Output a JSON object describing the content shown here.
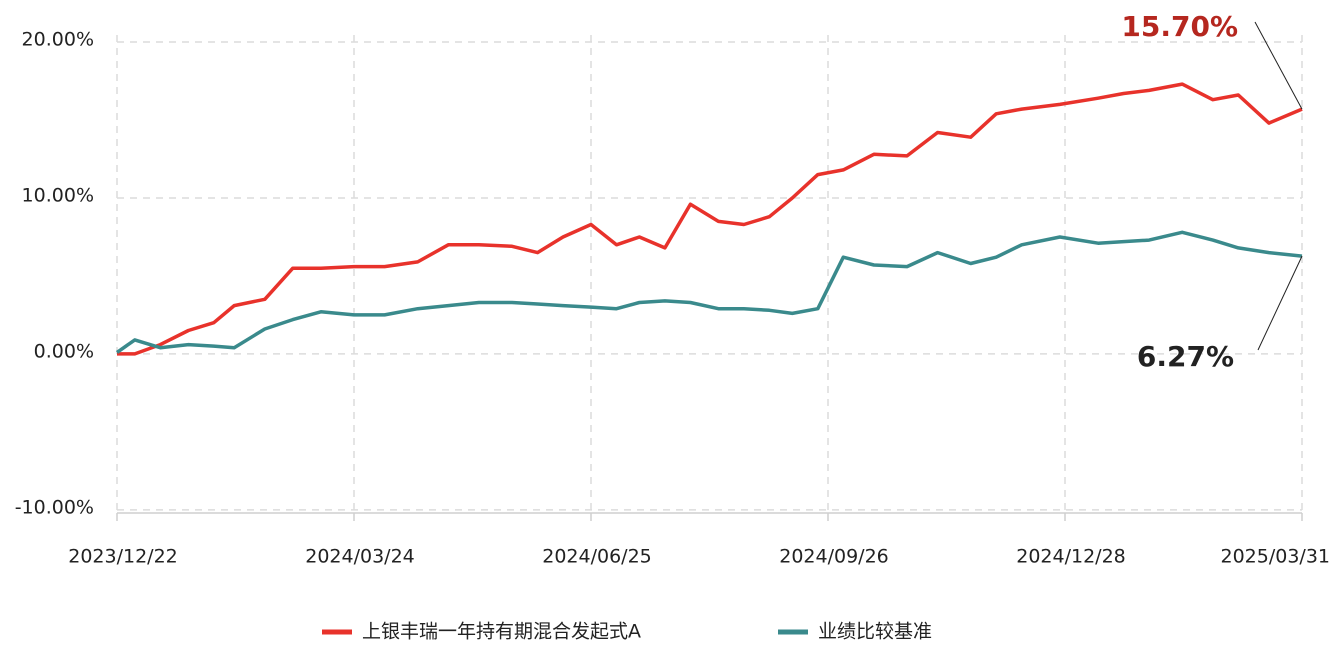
{
  "chart_data": {
    "type": "line",
    "x": [
      "2023/12/22",
      "2023/12/29",
      "2024/01/08",
      "2024/01/19",
      "2024/01/29",
      "2024/02/06",
      "2024/02/18",
      "2024/02/29",
      "2024/03/11",
      "2024/03/24",
      "2024/04/05",
      "2024/04/18",
      "2024/04/30",
      "2024/05/12",
      "2024/05/25",
      "2024/06/04",
      "2024/06/14",
      "2024/06/25",
      "2024/07/05",
      "2024/07/14",
      "2024/07/24",
      "2024/08/03",
      "2024/08/14",
      "2024/08/24",
      "2024/09/03",
      "2024/09/12",
      "2024/09/22",
      "2024/10/02",
      "2024/10/14",
      "2024/10/27",
      "2024/11/08",
      "2024/11/21",
      "2024/12/01",
      "2024/12/11",
      "2024/12/26",
      "2025/01/10",
      "2025/01/20",
      "2025/01/30",
      "2025/02/12",
      "2025/02/24",
      "2025/03/06",
      "2025/03/18",
      "2025/03/31"
    ],
    "series": [
      {
        "name": "上银丰瑞一年持有期混合发起式A",
        "color": "#e8322b",
        "label_color": "#b5271f",
        "end_label": "15.70%",
        "values": [
          0,
          0,
          0.6,
          1.5,
          2.0,
          3.1,
          3.5,
          5.5,
          5.5,
          5.6,
          5.6,
          5.9,
          7.0,
          7.0,
          6.9,
          6.5,
          7.5,
          8.3,
          7.0,
          7.5,
          6.8,
          9.6,
          8.5,
          8.3,
          8.8,
          10.0,
          11.5,
          11.8,
          12.8,
          12.7,
          14.2,
          13.9,
          15.4,
          15.7,
          16.0,
          16.4,
          16.7,
          16.9,
          17.3,
          16.3,
          16.6,
          14.8,
          15.7
        ]
      },
      {
        "name": "业绩比较基准",
        "color": "#3a8a8c",
        "label_color": "#222222",
        "end_label": "6.27%",
        "values": [
          0.1,
          0.9,
          0.4,
          0.6,
          0.5,
          0.4,
          1.6,
          2.2,
          2.7,
          2.5,
          2.5,
          2.9,
          3.1,
          3.3,
          3.3,
          3.2,
          3.1,
          3.0,
          2.9,
          3.3,
          3.4,
          3.3,
          2.9,
          2.9,
          2.8,
          2.6,
          2.9,
          6.2,
          5.7,
          5.6,
          6.5,
          5.8,
          6.2,
          7.0,
          7.5,
          7.1,
          7.2,
          7.3,
          7.8,
          7.3,
          6.8,
          6.5,
          6.27
        ]
      }
    ],
    "xlim": [
      "2023/12/22",
      "2025/03/31"
    ],
    "xticks": [
      "2023/12/22",
      "2024/03/24",
      "2024/06/25",
      "2024/09/26",
      "2024/12/28",
      "2025/03/31"
    ],
    "ylim": [
      -10.2,
      20.45
    ],
    "yticks": [
      {
        "value": -10,
        "label": "-10.00%"
      },
      {
        "value": 0,
        "label": "0.00%"
      },
      {
        "value": 10,
        "label": "10.00%"
      },
      {
        "value": 20,
        "label": "20.00%"
      }
    ],
    "grid": true,
    "legend": "bottom"
  }
}
